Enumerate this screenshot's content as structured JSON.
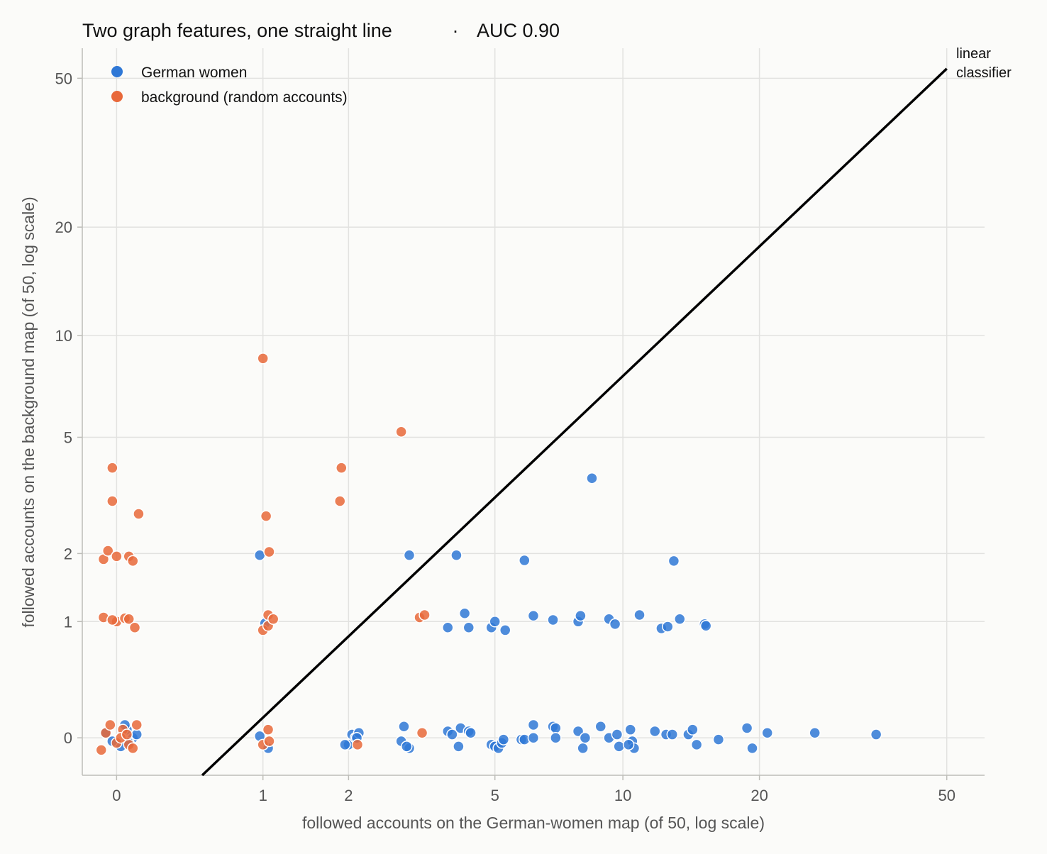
{
  "chart_data": {
    "type": "scatter",
    "title": "Two graph features, one straight line",
    "title_separator": "·",
    "metric": "AUC 0.90",
    "xlabel": "followed accounts on the German-women map (of 50, log scale)",
    "ylabel": "followed accounts on the background map (of 50, log scale)",
    "x_scale": "log(1+x)",
    "y_scale": "log(1+y)",
    "x_ticks": [
      0,
      1,
      2,
      5,
      10,
      20,
      50
    ],
    "y_ticks": [
      0,
      1,
      2,
      5,
      10,
      20,
      50
    ],
    "xlim": [
      -0.15,
      60
    ],
    "ylim": [
      -0.2,
      60
    ],
    "grid": true,
    "legend_position": "top-left",
    "line": {
      "name": "linear classifier",
      "label_lines": [
        "linear",
        "classifier"
      ],
      "points": [
        [
          0.5,
          -0.2
        ],
        [
          50,
          53
        ]
      ],
      "color": "#000000"
    },
    "series": [
      {
        "name": "German women",
        "color": "#2f78d6",
        "points": [
          [
            0.05,
            0.05
          ],
          [
            0.08,
            0.0
          ],
          [
            -0.05,
            0.03
          ],
          [
            0.02,
            -0.05
          ],
          [
            0.1,
            0.02
          ],
          [
            0.04,
            0.08
          ],
          [
            -0.02,
            -0.02
          ],
          [
            0.06,
            -0.03
          ],
          [
            0.97,
            0.01
          ],
          [
            1.05,
            -0.06
          ],
          [
            1.02,
            0.98
          ],
          [
            0.97,
            1.97
          ],
          [
            2.0,
            -0.04
          ],
          [
            2.05,
            0.02
          ],
          [
            2.1,
            0.0
          ],
          [
            2.15,
            0.03
          ],
          [
            2.12,
            0.0
          ],
          [
            1.95,
            -0.04
          ],
          [
            2.9,
            0.07
          ],
          [
            2.85,
            -0.02
          ],
          [
            3.0,
            -0.06
          ],
          [
            2.95,
            -0.05
          ],
          [
            3.0,
            1.97
          ],
          [
            3.8,
            0.04
          ],
          [
            3.9,
            0.02
          ],
          [
            4.05,
            -0.05
          ],
          [
            4.1,
            0.06
          ],
          [
            4.3,
            0.04
          ],
          [
            4.35,
            0.03
          ],
          [
            3.8,
            0.93
          ],
          [
            4.3,
            0.93
          ],
          [
            4.2,
            1.1
          ],
          [
            4.0,
            1.97
          ],
          [
            4.9,
            -0.04
          ],
          [
            5.0,
            -0.05
          ],
          [
            5.1,
            -0.06
          ],
          [
            5.2,
            -0.03
          ],
          [
            5.25,
            -0.01
          ],
          [
            4.9,
            0.93
          ],
          [
            5.3,
            0.9
          ],
          [
            5.0,
            1.0
          ],
          [
            5.8,
            -0.01
          ],
          [
            5.9,
            -0.01
          ],
          [
            6.2,
            0.08
          ],
          [
            6.2,
            0.0
          ],
          [
            5.9,
            1.88
          ],
          [
            6.2,
            1.07
          ],
          [
            6.9,
            0.07
          ],
          [
            7.0,
            0.06
          ],
          [
            7.0,
            0.0
          ],
          [
            6.9,
            1.02
          ],
          [
            7.9,
            0.04
          ],
          [
            8.1,
            -0.06
          ],
          [
            8.2,
            0.0
          ],
          [
            7.9,
            1.0
          ],
          [
            8.0,
            1.07
          ],
          [
            8.5,
            3.7
          ],
          [
            8.9,
            0.07
          ],
          [
            9.3,
            0.0
          ],
          [
            9.7,
            0.02
          ],
          [
            9.8,
            -0.05
          ],
          [
            9.3,
            1.03
          ],
          [
            9.6,
            0.97
          ],
          [
            10.4,
            0.05
          ],
          [
            10.5,
            -0.02
          ],
          [
            10.6,
            -0.06
          ],
          [
            10.3,
            -0.04
          ],
          [
            10.9,
            1.08
          ],
          [
            11.8,
            0.04
          ],
          [
            12.2,
            0.92
          ],
          [
            12.5,
            0.02
          ],
          [
            12.9,
            0.02
          ],
          [
            12.6,
            0.94
          ],
          [
            13.0,
            1.87
          ],
          [
            13.4,
            1.03
          ],
          [
            14.0,
            0.02
          ],
          [
            14.3,
            0.05
          ],
          [
            14.6,
            -0.04
          ],
          [
            15.2,
            0.97
          ],
          [
            15.3,
            0.95
          ],
          [
            16.3,
            -0.01
          ],
          [
            18.8,
            0.06
          ],
          [
            19.3,
            -0.06
          ],
          [
            20.8,
            0.03
          ],
          [
            26.3,
            0.03
          ],
          [
            35.5,
            0.02
          ]
        ]
      },
      {
        "name": "background (random accounts)",
        "color": "#e8683a",
        "points": [
          [
            -0.05,
            0.03
          ],
          [
            0.0,
            -0.03
          ],
          [
            0.03,
            0.05
          ],
          [
            0.06,
            -0.04
          ],
          [
            -0.03,
            0.08
          ],
          [
            0.08,
            -0.06
          ],
          [
            -0.07,
            -0.07
          ],
          [
            0.1,
            0.08
          ],
          [
            0.02,
            0.0
          ],
          [
            0.05,
            0.02
          ],
          [
            -0.06,
            1.05
          ],
          [
            0.0,
            1.0
          ],
          [
            0.04,
            1.04
          ],
          [
            0.06,
            1.03
          ],
          [
            0.09,
            0.93
          ],
          [
            -0.02,
            1.02
          ],
          [
            -0.06,
            1.9
          ],
          [
            -0.04,
            2.05
          ],
          [
            0.0,
            1.95
          ],
          [
            0.06,
            1.95
          ],
          [
            0.08,
            1.87
          ],
          [
            -0.02,
            4.0
          ],
          [
            -0.02,
            3.1
          ],
          [
            0.11,
            2.8
          ],
          [
            1.0,
            -0.04
          ],
          [
            1.06,
            -0.02
          ],
          [
            1.05,
            0.05
          ],
          [
            1.0,
            0.9
          ],
          [
            1.05,
            0.95
          ],
          [
            1.05,
            1.08
          ],
          [
            1.1,
            1.03
          ],
          [
            1.06,
            2.03
          ],
          [
            1.03,
            2.75
          ],
          [
            1.0,
            8.6
          ],
          [
            2.13,
            -0.04
          ],
          [
            1.9,
            4.0
          ],
          [
            1.88,
            3.1
          ],
          [
            2.85,
            5.2
          ],
          [
            3.2,
            1.05
          ],
          [
            3.3,
            1.08
          ],
          [
            3.25,
            0.03
          ]
        ]
      }
    ]
  }
}
